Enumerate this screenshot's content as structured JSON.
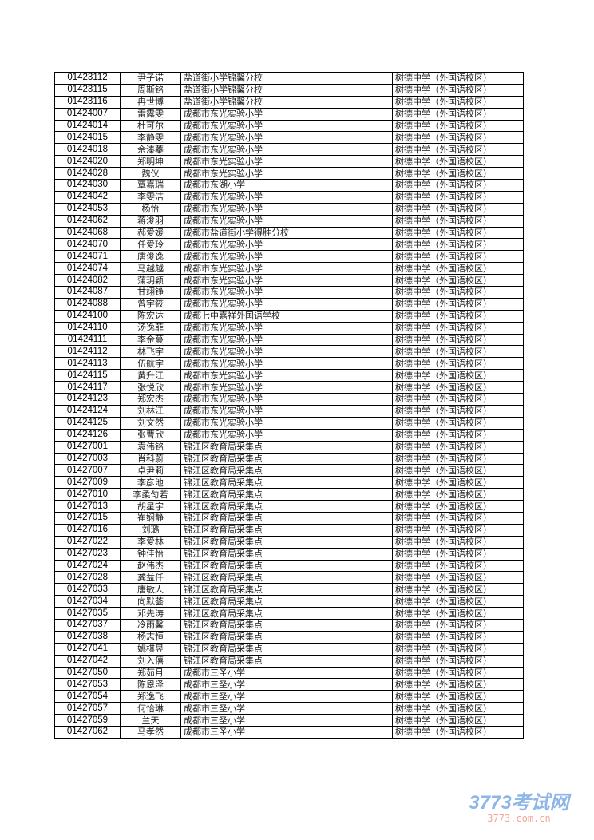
{
  "rows": [
    [
      "01423112",
      "尹子诺",
      "盐道街小学锦馨分校",
      "树德中学（外国语校区）"
    ],
    [
      "01423115",
      "周斯铭",
      "盐道街小学锦馨分校",
      "树德中学（外国语校区）"
    ],
    [
      "01423116",
      "冉世博",
      "盐道街小学锦馨分校",
      "树德中学（外国语校区）"
    ],
    [
      "01424007",
      "雷露雯",
      "成都市东光实验小学",
      "树德中学（外国语校区）"
    ],
    [
      "01424014",
      "杜可尔",
      "成都市东光实验小学",
      "树德中学（外国语校区）"
    ],
    [
      "01424015",
      "李静雯",
      "成都市东光实验小学",
      "树德中学（外国语校区）"
    ],
    [
      "01424018",
      "佘溱蓁",
      "成都市东光实验小学",
      "树德中学（外国语校区）"
    ],
    [
      "01424020",
      "郑明坤",
      "成都市东光实验小学",
      "树德中学（外国语校区）"
    ],
    [
      "01424028",
      "魏仪",
      "成都市东光实验小学",
      "树德中学（外国语校区）"
    ],
    [
      "01424030",
      "覃嘉瑞",
      "成都市东湖小学",
      "树德中学（外国语校区）"
    ],
    [
      "01424042",
      "李雯洁",
      "成都市东光实验小学",
      "树德中学（外国语校区）"
    ],
    [
      "01424053",
      "杨怡",
      "成都市东光实验小学",
      "树德中学（外国语校区）"
    ],
    [
      "01424062",
      "蒋浚羽",
      "成都市东光实验小学",
      "树德中学（外国语校区）"
    ],
    [
      "01424068",
      "郝爱媛",
      "成都市盐道街小学得胜分校",
      "树德中学（外国语校区）"
    ],
    [
      "01424070",
      "任爱玲",
      "成都市东光实验小学",
      "树德中学（外国语校区）"
    ],
    [
      "01424071",
      "唐俊逸",
      "成都市东光实验小学",
      "树德中学（外国语校区）"
    ],
    [
      "01424074",
      "马越越",
      "成都市东光实验小学",
      "树德中学（外国语校区）"
    ],
    [
      "01424082",
      "蒲玥颖",
      "成都市东光实验小学",
      "树德中学（外国语校区）"
    ],
    [
      "01424087",
      "甘翊铮",
      "成都市东光实验小学",
      "树德中学（外国语校区）"
    ],
    [
      "01424088",
      "曾宇筱",
      "成都市东光实验小学",
      "树德中学（外国语校区）"
    ],
    [
      "01424100",
      "陈宏达",
      "成都七中嘉祥外国语学校",
      "树德中学（外国语校区）"
    ],
    [
      "01424110",
      "汤逸菲",
      "成都市东光实验小学",
      "树德中学（外国语校区）"
    ],
    [
      "01424111",
      "李金蔓",
      "成都市东光实验小学",
      "树德中学（外国语校区）"
    ],
    [
      "01424112",
      "林飞宇",
      "成都市东光实验小学",
      "树德中学（外国语校区）"
    ],
    [
      "01424113",
      "伍航宇",
      "成都市东光实验小学",
      "树德中学（外国语校区）"
    ],
    [
      "01424115",
      "黄升江",
      "成都市东光实验小学",
      "树德中学（外国语校区）"
    ],
    [
      "01424117",
      "张悦欣",
      "成都市东光实验小学",
      "树德中学（外国语校区）"
    ],
    [
      "01424123",
      "郑宏杰",
      "成都市东光实验小学",
      "树德中学（外国语校区）"
    ],
    [
      "01424124",
      "刘林江",
      "成都市东光实验小学",
      "树德中学（外国语校区）"
    ],
    [
      "01424125",
      "刘文然",
      "成都市东光实验小学",
      "树德中学（外国语校区）"
    ],
    [
      "01424126",
      "张曹欣",
      "成都市东光实验小学",
      "树德中学（外国语校区）"
    ],
    [
      "01427001",
      "袁伟铭",
      "锦江区教育局采集点",
      "树德中学（外国语校区）"
    ],
    [
      "01427003",
      "肖科蔚",
      "锦江区教育局采集点",
      "树德中学（外国语校区）"
    ],
    [
      "01427007",
      "卓尹莉",
      "锦江区教育局采集点",
      "树德中学（外国语校区）"
    ],
    [
      "01427009",
      "李彦池",
      "锦江区教育局采集点",
      "树德中学（外国语校区）"
    ],
    [
      "01427010",
      "李柔匀若",
      "锦江区教育局采集点",
      "树德中学（外国语校区）"
    ],
    [
      "01427013",
      "胡星宇",
      "锦江区教育局采集点",
      "树德中学（外国语校区）"
    ],
    [
      "01427015",
      "崔娴静",
      "锦江区教育局采集点",
      "树德中学（外国语校区）"
    ],
    [
      "01427016",
      "刘璐",
      "锦江区教育局采集点",
      "树德中学（外国语校区）"
    ],
    [
      "01427022",
      "李爱林",
      "锦江区教育局采集点",
      "树德中学（外国语校区）"
    ],
    [
      "01427023",
      "钟佳怡",
      "锦江区教育局采集点",
      "树德中学（外国语校区）"
    ],
    [
      "01427024",
      "赵伟杰",
      "锦江区教育局采集点",
      "树德中学（外国语校区）"
    ],
    [
      "01427028",
      "龚益仟",
      "锦江区教育局采集点",
      "树德中学（外国语校区）"
    ],
    [
      "01427033",
      "唐敏人",
      "锦江区教育局采集点",
      "树德中学（外国语校区）"
    ],
    [
      "01427034",
      "向默荟",
      "锦江区教育局采集点",
      "树德中学（外国语校区）"
    ],
    [
      "01427035",
      "邓先涛",
      "锦江区教育局采集点",
      "树德中学（外国语校区）"
    ],
    [
      "01427037",
      "冷雨馨",
      "锦江区教育局采集点",
      "树德中学（外国语校区）"
    ],
    [
      "01427038",
      "杨志恒",
      "锦江区教育局采集点",
      "树德中学（外国语校区）"
    ],
    [
      "01427041",
      "姚棋昱",
      "锦江区教育局采集点",
      "树德中学（外国语校区）"
    ],
    [
      "01427042",
      "刘入僖",
      "锦江区教育局采集点",
      "树德中学（外国语校区）"
    ],
    [
      "01427050",
      "郑茹月",
      "成都市三圣小学",
      "树德中学（外国语校区）"
    ],
    [
      "01427053",
      "陈恩泽",
      "成都市三圣小学",
      "树德中学（外国语校区）"
    ],
    [
      "01427054",
      "郑逸飞",
      "成都市三圣小学",
      "树德中学（外国语校区）"
    ],
    [
      "01427057",
      "何怡琳",
      "成都市三圣小学",
      "树德中学（外国语校区）"
    ],
    [
      "01427059",
      "兰天",
      "成都市三圣小学",
      "树德中学（外国语校区）"
    ],
    [
      "01427062",
      "马孝然",
      "成都市三圣小学",
      "树德中学（外国语校区）"
    ]
  ],
  "watermark": {
    "name": "3773考试网",
    "url": "3773.com.cn"
  }
}
